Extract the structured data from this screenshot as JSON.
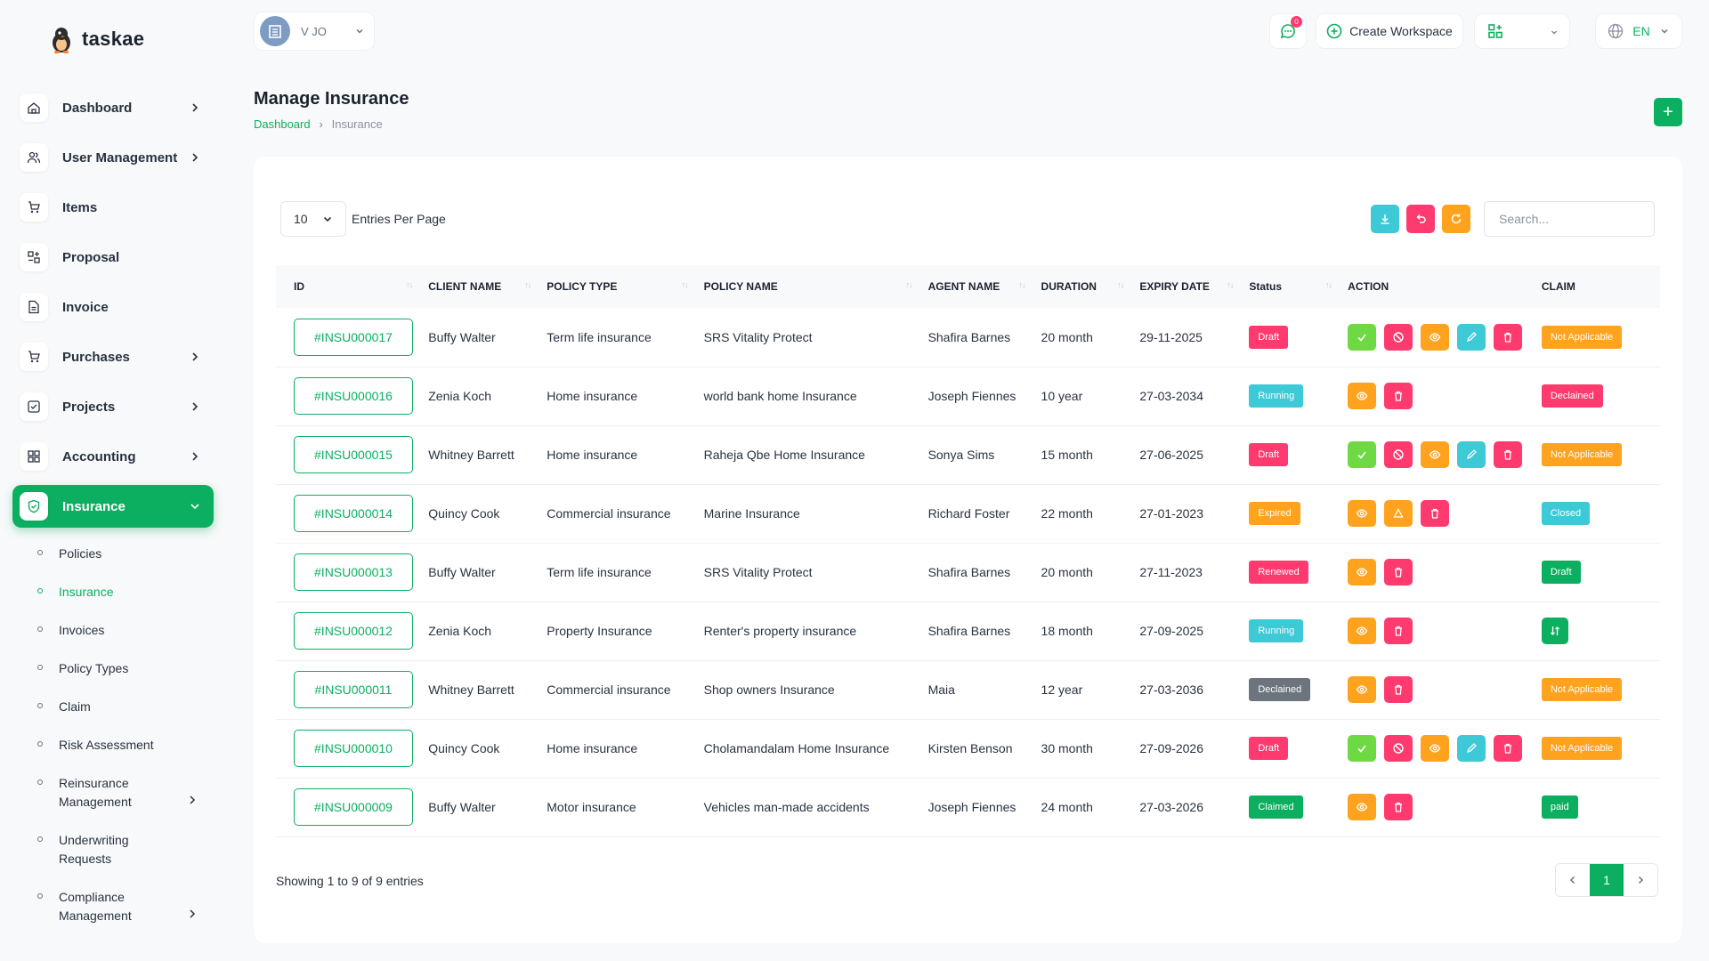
{
  "app": {
    "name": "taskae"
  },
  "sidebar": {
    "items": [
      {
        "label": "Dashboard",
        "icon": "home-icon",
        "chevron": true
      },
      {
        "label": "User Management",
        "icon": "users-icon",
        "chevron": true
      },
      {
        "label": "Items",
        "icon": "cart-icon",
        "chevron": false
      },
      {
        "label": "Proposal",
        "icon": "proposal-icon",
        "chevron": false
      },
      {
        "label": "Invoice",
        "icon": "file-icon",
        "chevron": false
      },
      {
        "label": "Purchases",
        "icon": "cart-icon",
        "chevron": true
      },
      {
        "label": "Projects",
        "icon": "checkbox-icon",
        "chevron": true
      },
      {
        "label": "Accounting",
        "icon": "grid-icon",
        "chevron": true
      },
      {
        "label": "Insurance",
        "icon": "shield-icon",
        "chevron": true,
        "active": true
      }
    ],
    "sub_items": [
      {
        "label": "Policies"
      },
      {
        "label": "Insurance",
        "active": true
      },
      {
        "label": "Invoices"
      },
      {
        "label": "Policy Types"
      },
      {
        "label": "Claim"
      },
      {
        "label": "Risk Assessment"
      },
      {
        "label": "Reinsurance Management",
        "chevron": true
      },
      {
        "label": "Underwriting Requests"
      },
      {
        "label": "Compliance Management",
        "chevron": true
      }
    ]
  },
  "header": {
    "workspace_text": "V        JO",
    "chat_badge": "0",
    "create_workspace": "Create Workspace",
    "language": "EN"
  },
  "page": {
    "title": "Manage Insurance",
    "breadcrumb": [
      "Dashboard",
      "Insurance"
    ]
  },
  "table_controls": {
    "entries_value": "10",
    "entries_label": "Entries Per Page",
    "search_placeholder": "Search..."
  },
  "table": {
    "columns": [
      "ID",
      "CLIENT NAME",
      "POLICY TYPE",
      "POLICY NAME",
      "AGENT NAME",
      "DURATION",
      "EXPIRY DATE",
      "Status",
      "ACTION",
      "CLAIM"
    ],
    "rows": [
      {
        "id": "#INSU000017",
        "client": "Buffy Walter",
        "type": "Term life insurance",
        "policy": "SRS Vitality Protect",
        "agent": "Shafira Barnes",
        "duration": "20 month",
        "expiry": "29-11-2025",
        "status": "Draft",
        "status_color": "#ff3a6e",
        "actions": [
          "approve",
          "reject",
          "view",
          "edit",
          "delete"
        ],
        "claim": "Not Applicable",
        "claim_color": "#ffa21d"
      },
      {
        "id": "#INSU000016",
        "client": "Zenia Koch",
        "type": "Home insurance",
        "policy": "world bank home Insurance",
        "agent": "Joseph Fiennes",
        "duration": "10 year",
        "expiry": "27-03-2034",
        "status": "Running",
        "status_color": "#3ec9d6",
        "actions": [
          "view",
          "delete"
        ],
        "claim": "Declained",
        "claim_color": "#ff3a6e"
      },
      {
        "id": "#INSU000015",
        "client": "Whitney Barrett",
        "type": "Home insurance",
        "policy": "Raheja Qbe Home Insurance",
        "agent": "Sonya Sims",
        "duration": "15 month",
        "expiry": "27-06-2025",
        "status": "Draft",
        "status_color": "#ff3a6e",
        "actions": [
          "approve",
          "reject",
          "view",
          "edit",
          "delete"
        ],
        "claim": "Not Applicable",
        "claim_color": "#ffa21d"
      },
      {
        "id": "#INSU000014",
        "client": "Quincy Cook",
        "type": "Commercial insurance",
        "policy": "Marine Insurance",
        "agent": "Richard Foster",
        "duration": "22 month",
        "expiry": "27-01-2023",
        "status": "Expired",
        "status_color": "#ffa21d",
        "actions": [
          "view",
          "renew",
          "delete"
        ],
        "claim": "Closed",
        "claim_color": "#3ec9d6"
      },
      {
        "id": "#INSU000013",
        "client": "Buffy Walter",
        "type": "Term life insurance",
        "policy": "SRS Vitality Protect",
        "agent": "Shafira Barnes",
        "duration": "20 month",
        "expiry": "27-11-2023",
        "status": "Renewed",
        "status_color": "#ff3a6e",
        "actions": [
          "view",
          "delete"
        ],
        "claim": "Draft",
        "claim_color": "#0caf60"
      },
      {
        "id": "#INSU000012",
        "client": "Zenia Koch",
        "type": "Property Insurance",
        "policy": "Renter's property insurance",
        "agent": "Shafira Barnes",
        "duration": "18 month",
        "expiry": "27-09-2025",
        "status": "Running",
        "status_color": "#3ec9d6",
        "actions": [
          "view",
          "delete"
        ],
        "claim": "",
        "claim_color": "#0caf60",
        "claim_icon": true
      },
      {
        "id": "#INSU000011",
        "client": "Whitney Barrett",
        "type": "Commercial insurance",
        "policy": "Shop owners Insurance",
        "agent": "Maia",
        "duration": "12 year",
        "expiry": "27-03-2036",
        "status": "Declained",
        "status_color": "#6c757d",
        "actions": [
          "view",
          "delete"
        ],
        "claim": "Not Applicable",
        "claim_color": "#ffa21d"
      },
      {
        "id": "#INSU000010",
        "client": "Quincy Cook",
        "type": "Home insurance",
        "policy": "Cholamandalam Home Insurance",
        "agent": "Kirsten Benson",
        "duration": "30 month",
        "expiry": "27-09-2026",
        "status": "Draft",
        "status_color": "#ff3a6e",
        "actions": [
          "approve",
          "reject",
          "view",
          "edit",
          "delete"
        ],
        "claim": "Not Applicable",
        "claim_color": "#ffa21d"
      },
      {
        "id": "#INSU000009",
        "client": "Buffy Walter",
        "type": "Motor insurance",
        "policy": "Vehicles man-made accidents",
        "agent": "Joseph Fiennes",
        "duration": "24 month",
        "expiry": "27-03-2026",
        "status": "Claimed",
        "status_color": "#0caf60",
        "actions": [
          "view",
          "delete"
        ],
        "claim": "paid",
        "claim_color": "#0caf60"
      }
    ]
  },
  "footer": {
    "showing": "Showing 1 to 9 of 9 entries",
    "current_page": "1"
  },
  "colors": {
    "accent": "#0caf60",
    "danger": "#ff3a6e",
    "warning": "#ffa21d",
    "info": "#3ec9d6",
    "success_light": "#6fd943"
  }
}
